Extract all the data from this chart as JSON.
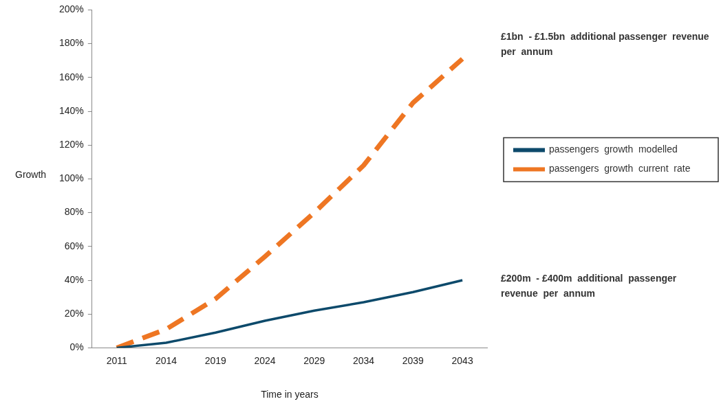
{
  "chart_data": {
    "type": "line",
    "xlabel": "Time in years",
    "ylabel": "Growth",
    "categories": [
      "2011",
      "2014",
      "2019",
      "2024",
      "2029",
      "2034",
      "2039",
      "2043"
    ],
    "series": [
      {
        "name": "passengers  growth  modelled",
        "color": "#0d4a6b",
        "line_style": "solid",
        "values": [
          0,
          3,
          9,
          16,
          22,
          27,
          33,
          40
        ]
      },
      {
        "name": "passengers  growth  current  rate",
        "color": "#ee7623",
        "line_style": "dashed",
        "values": [
          0,
          11,
          29,
          54,
          80,
          108,
          145,
          171
        ]
      }
    ],
    "ylim": [
      0,
      200
    ],
    "yticks": [
      {
        "value": 0,
        "label": "0%"
      },
      {
        "value": 20,
        "label": "20%"
      },
      {
        "value": 40,
        "label": "40%"
      },
      {
        "value": 60,
        "label": "60%"
      },
      {
        "value": 80,
        "label": "80%"
      },
      {
        "value": 100,
        "label": "100%"
      },
      {
        "value": 120,
        "label": "120%"
      },
      {
        "value": 140,
        "label": "140%"
      },
      {
        "value": 160,
        "label": "160%"
      },
      {
        "value": 180,
        "label": "180%"
      },
      {
        "value": 200,
        "label": "200%"
      }
    ],
    "grid": false,
    "legend": "right",
    "marker": "none",
    "annotations": [
      "£1bn  - £1.5bn  additional passenger  revenue  per  annum",
      "£200m  - £400m  additional  passenger revenue  per  annum"
    ]
  }
}
